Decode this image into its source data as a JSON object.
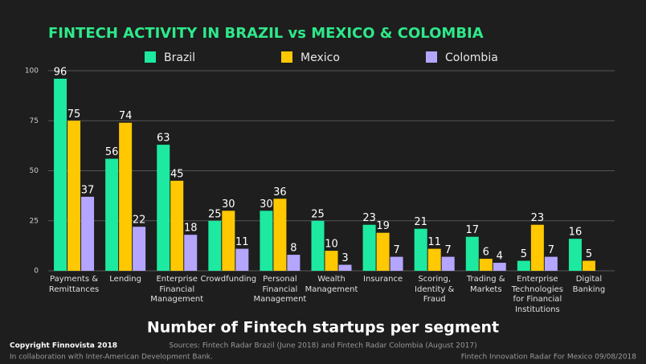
{
  "chart_data": {
    "type": "bar",
    "title": "FINTECH ACTIVITY IN BRAZIL vs MEXICO & COLOMBIA",
    "subtitle": "Number of Fintech startups per segment",
    "categories": [
      "Payments &\nRemittances",
      "Lending",
      "Enterprise\nFinancial\nManagement",
      "Crowdfunding",
      "Personal\nFinancial\nManagement",
      "Wealth\nManagement",
      "Insurance",
      "Scoring,\nIdentity &\nFraud",
      "Trading &\nMarkets",
      "Enterprise\nTechnologies\nfor Financial\nInstitutions",
      "Digital\nBanking"
    ],
    "series": [
      {
        "name": "Brazil",
        "color": "#1de9a0",
        "values": [
          96,
          56,
          63,
          25,
          30,
          25,
          23,
          21,
          17,
          5,
          16
        ]
      },
      {
        "name": "Mexico",
        "color": "#ffc800",
        "values": [
          75,
          74,
          45,
          30,
          36,
          10,
          19,
          11,
          6,
          23,
          5
        ]
      },
      {
        "name": "Colombia",
        "color": "#b4a6ff",
        "values": [
          37,
          22,
          18,
          11,
          8,
          3,
          7,
          7,
          4,
          7,
          null
        ]
      }
    ],
    "ylim": [
      0,
      100
    ],
    "yticks": [
      0,
      25,
      50,
      75,
      100
    ],
    "grid": true,
    "sources": "Sources: Fintech Radar Brazil (June 2018) and Fintech Radar Colombia (August 2017)",
    "copyright": "Copyright Finnovista 2018",
    "collaboration": "In collaboration with Inter-American Development Bank.",
    "footer_right": "Fintech Innovation Radar For Mexico 09/08/2018"
  }
}
